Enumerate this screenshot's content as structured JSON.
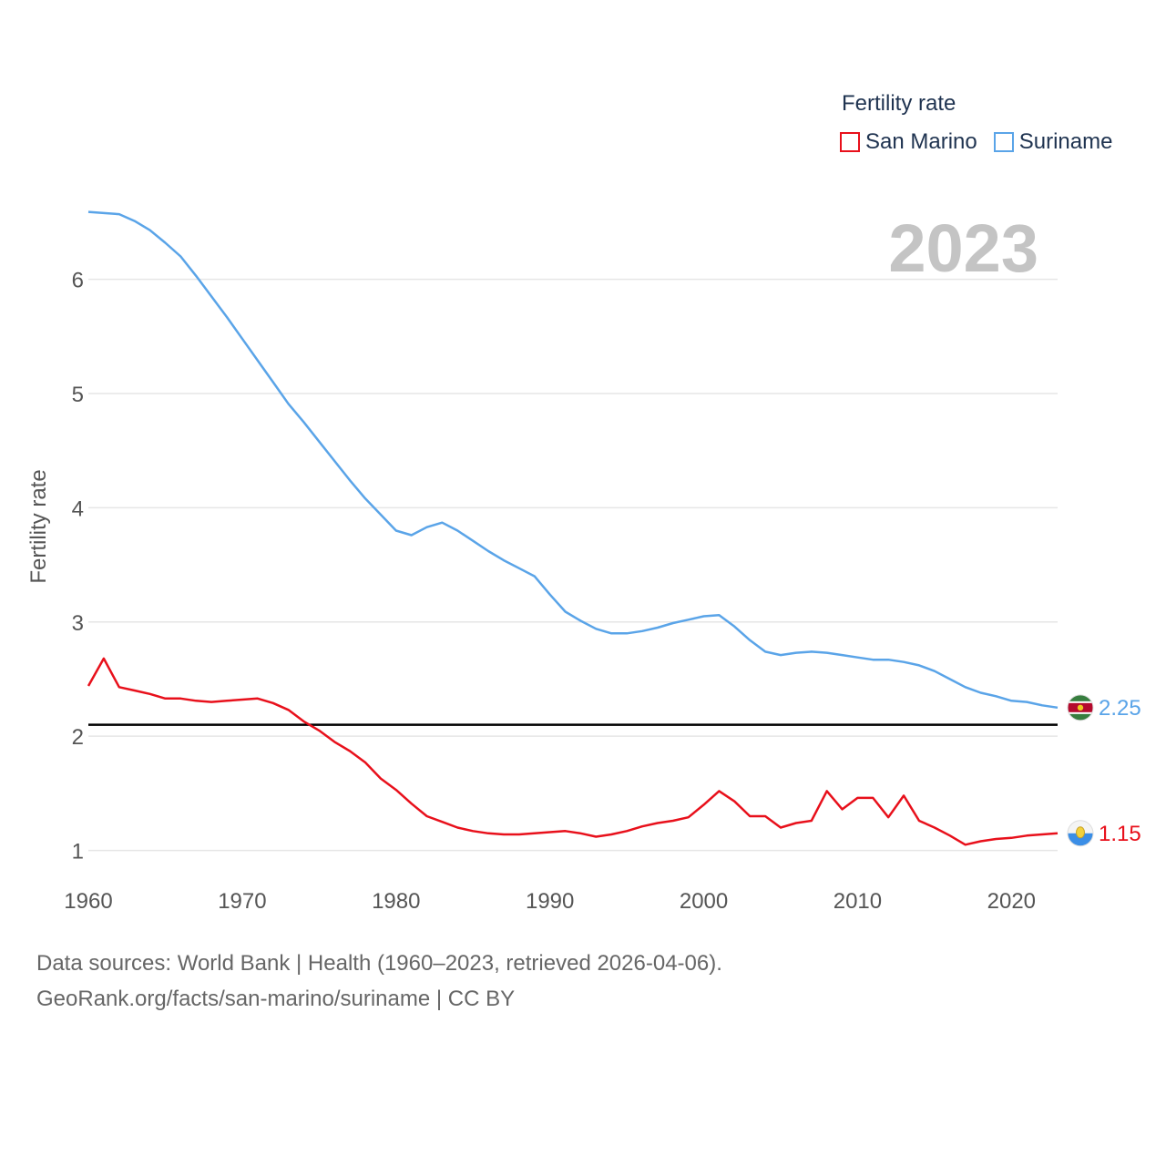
{
  "legend": {
    "title": "Fertility rate"
  },
  "footer": {
    "line1": "Data sources: World Bank | Health (1960–2023, retrieved 2026-04-06).",
    "line2": "GeoRank.org/facts/san-marino/suriname | CC BY"
  },
  "chart_data": {
    "type": "line",
    "title": "Fertility rate",
    "year_badge": "2023",
    "xlabel": "",
    "ylabel": "Fertility rate",
    "xlim": [
      1960,
      2023
    ],
    "ylim": [
      0.55,
      6.85
    ],
    "x_ticks": [
      1960,
      1970,
      1980,
      1990,
      2000,
      2010,
      2020
    ],
    "y_ticks": [
      1,
      2,
      3,
      4,
      5,
      6
    ],
    "grid": true,
    "legend_position": "top-right",
    "reference_line": {
      "y": 2.1,
      "color": "#000000"
    },
    "x": [
      1960,
      1961,
      1962,
      1963,
      1964,
      1965,
      1966,
      1967,
      1968,
      1969,
      1970,
      1971,
      1972,
      1973,
      1974,
      1975,
      1976,
      1977,
      1978,
      1979,
      1980,
      1981,
      1982,
      1983,
      1984,
      1985,
      1986,
      1987,
      1988,
      1989,
      1990,
      1991,
      1992,
      1993,
      1994,
      1995,
      1996,
      1997,
      1998,
      1999,
      2000,
      2001,
      2002,
      2003,
      2004,
      2005,
      2006,
      2007,
      2008,
      2009,
      2010,
      2011,
      2012,
      2013,
      2014,
      2015,
      2016,
      2017,
      2018,
      2019,
      2020,
      2021,
      2022,
      2023
    ],
    "series": [
      {
        "name": "San Marino",
        "color": "#e8101b",
        "end_label": "1.15",
        "values": [
          2.44,
          2.68,
          2.43,
          2.4,
          2.37,
          2.33,
          2.33,
          2.31,
          2.3,
          2.31,
          2.32,
          2.33,
          2.29,
          2.23,
          2.13,
          2.05,
          1.95,
          1.87,
          1.77,
          1.63,
          1.53,
          1.41,
          1.3,
          1.25,
          1.2,
          1.17,
          1.15,
          1.14,
          1.14,
          1.15,
          1.16,
          1.17,
          1.15,
          1.12,
          1.14,
          1.17,
          1.21,
          1.24,
          1.26,
          1.29,
          1.4,
          1.52,
          1.43,
          1.3,
          1.3,
          1.2,
          1.24,
          1.26,
          1.52,
          1.36,
          1.46,
          1.46,
          1.29,
          1.48,
          1.26,
          1.2,
          1.13,
          1.05,
          1.08,
          1.1,
          1.11,
          1.13,
          1.14,
          1.15
        ]
      },
      {
        "name": "Suriname",
        "color": "#5aa4e8",
        "end_label": "2.25",
        "values": [
          6.59,
          6.58,
          6.57,
          6.51,
          6.43,
          6.32,
          6.2,
          6.03,
          5.85,
          5.67,
          5.48,
          5.29,
          5.1,
          4.91,
          4.75,
          4.58,
          4.41,
          4.24,
          4.08,
          3.94,
          3.8,
          3.76,
          3.83,
          3.87,
          3.8,
          3.71,
          3.62,
          3.54,
          3.47,
          3.4,
          3.24,
          3.09,
          3.01,
          2.94,
          2.9,
          2.9,
          2.92,
          2.95,
          2.99,
          3.02,
          3.05,
          3.06,
          2.96,
          2.84,
          2.74,
          2.71,
          2.73,
          2.74,
          2.73,
          2.71,
          2.69,
          2.67,
          2.67,
          2.65,
          2.62,
          2.57,
          2.5,
          2.43,
          2.38,
          2.35,
          2.31,
          2.3,
          2.27,
          2.25
        ]
      }
    ]
  }
}
